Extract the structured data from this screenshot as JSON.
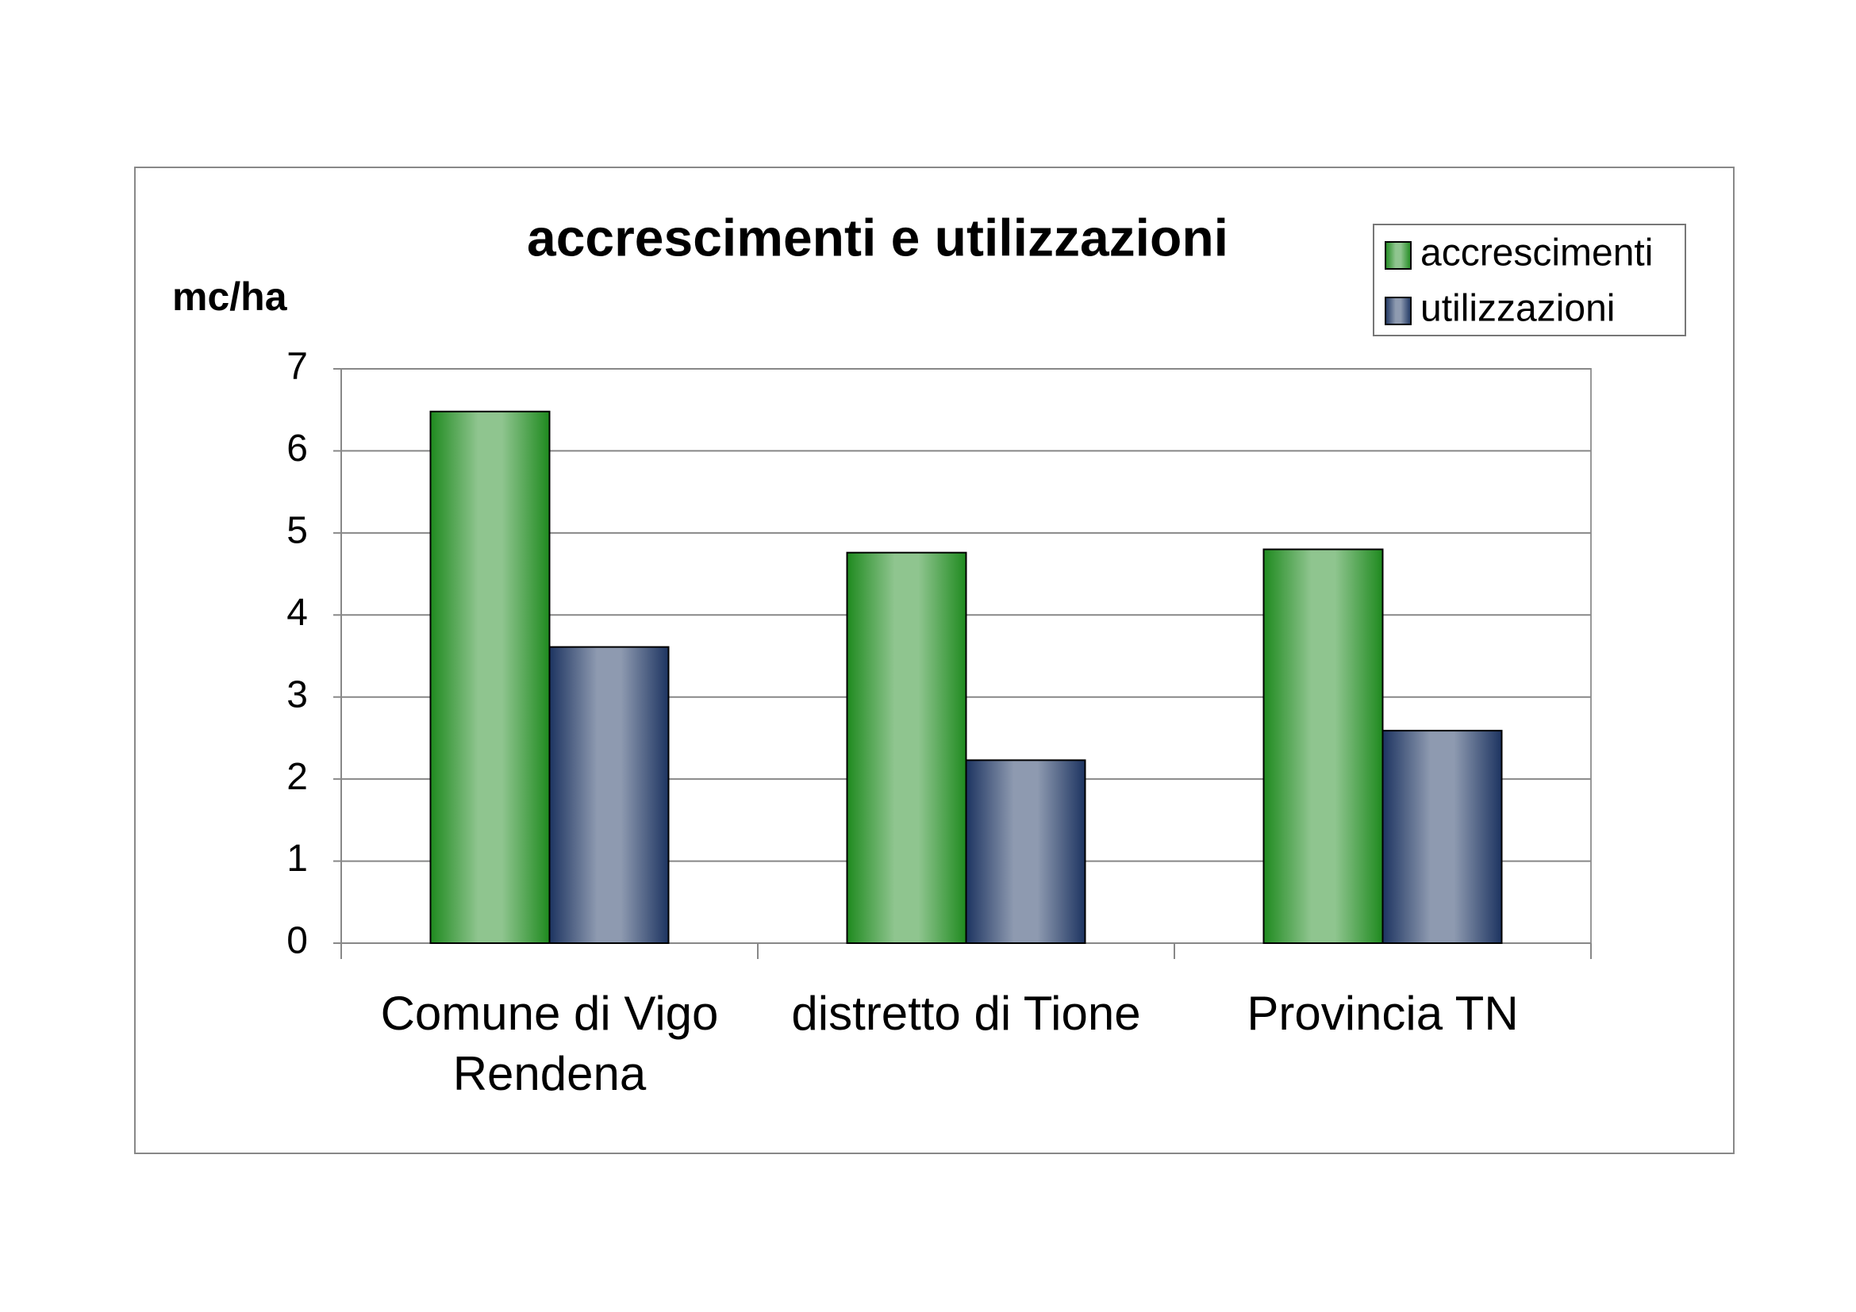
{
  "chart_data": {
    "type": "bar",
    "title": "accrescimenti e utilizzazioni",
    "y_label": "mc/ha",
    "categories": [
      "Comune di Vigo Rendena",
      "distretto di Tione",
      "Provincia TN"
    ],
    "series": [
      {
        "name": "accrescimenti",
        "color": "#1f8a1f",
        "values": [
          6.48,
          4.76,
          4.8
        ]
      },
      {
        "name": "utilizzazioni",
        "color": "#1d3461",
        "values": [
          3.61,
          2.23,
          2.59
        ]
      }
    ],
    "ylim": [
      0,
      7
    ],
    "yticks": [
      0,
      1,
      2,
      3,
      4,
      5,
      6,
      7
    ],
    "grid": true,
    "legend": "top-right"
  }
}
